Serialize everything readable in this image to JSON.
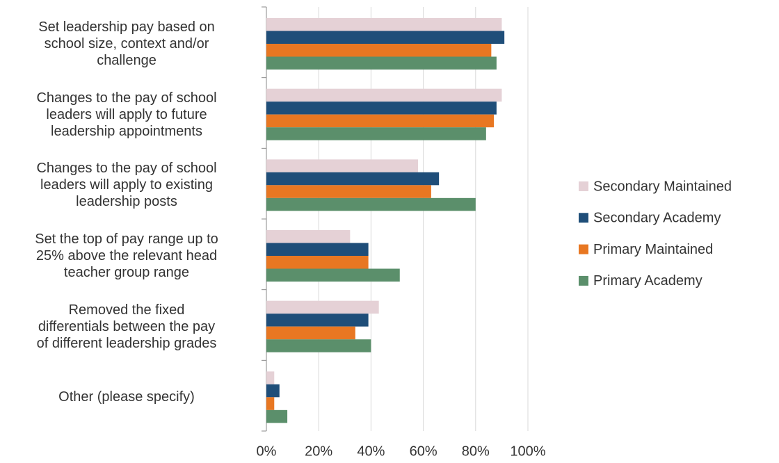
{
  "chart_data": {
    "type": "bar",
    "orientation": "horizontal",
    "categories": [
      "Set leadership pay based on\nschool size, context and/or\nchallenge",
      "Changes to the pay of school\nleaders will apply to future\nleadership appointments",
      "Changes to the pay of school\nleaders will apply to existing\nleadership posts",
      "Set the top of pay range up to\n25% above the relevant head\nteacher group range",
      "Removed the fixed\ndifferentials between the pay\nof different leadership grades",
      "Other (please specify)"
    ],
    "series": [
      {
        "name": "Secondary Maintained",
        "color": "#e5d1d6",
        "values": [
          90,
          90,
          58,
          32,
          43,
          3
        ]
      },
      {
        "name": "Secondary Academy",
        "color": "#1f4e79",
        "values": [
          91,
          88,
          66,
          39,
          39,
          5
        ]
      },
      {
        "name": "Primary Maintained",
        "color": "#e87722",
        "values": [
          86,
          87,
          63,
          39,
          34,
          3
        ]
      },
      {
        "name": "Primary Academy",
        "color": "#5b8f6b",
        "values": [
          88,
          84,
          80,
          51,
          40,
          8
        ]
      }
    ],
    "xlim": [
      0,
      100
    ],
    "xticks": [
      {
        "value": 0,
        "label": "0%"
      },
      {
        "value": 20,
        "label": "20%"
      },
      {
        "value": 40,
        "label": "40%"
      },
      {
        "value": 60,
        "label": "60%"
      },
      {
        "value": 80,
        "label": "80%"
      },
      {
        "value": 100,
        "label": "100%"
      }
    ],
    "grid": true,
    "legend": "right"
  }
}
